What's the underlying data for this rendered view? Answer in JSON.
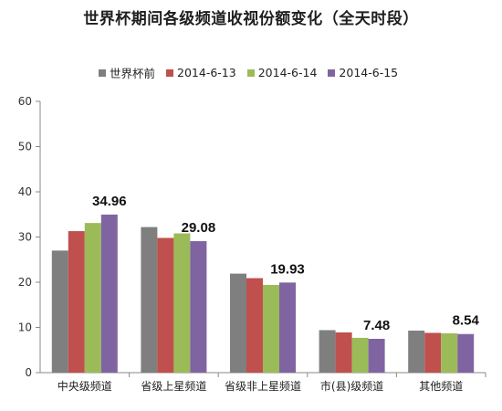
{
  "chart_data": {
    "type": "bar",
    "title": "世界杯期间各级频道收视份额变化（全天时段）",
    "xlabel": "",
    "ylabel": "",
    "ylim": [
      0,
      60
    ],
    "yticks": [
      0,
      10,
      20,
      30,
      40,
      50,
      60
    ],
    "grid": false,
    "legend_position": "top",
    "categories": [
      "中央级频道",
      "省级上星频道",
      "省级非上星频道",
      "市(县)级频道",
      "其他频道"
    ],
    "series": [
      {
        "name": "世界杯前",
        "color": "#7f7f7f",
        "values": [
          27.0,
          32.2,
          21.9,
          9.4,
          9.3
        ]
      },
      {
        "name": "2014-6-13",
        "color": "#c0504d",
        "values": [
          31.3,
          29.8,
          20.9,
          8.9,
          8.8
        ]
      },
      {
        "name": "2014-6-14",
        "color": "#9bbb59",
        "values": [
          33.1,
          30.8,
          19.4,
          7.7,
          8.7
        ]
      },
      {
        "name": "2014-6-15",
        "color": "#8064a2",
        "values": [
          34.96,
          29.08,
          19.93,
          7.48,
          8.54
        ]
      }
    ],
    "data_labels": [
      {
        "category_index": 0,
        "series_index": 3,
        "text": "34.96"
      },
      {
        "category_index": 1,
        "series_index": 3,
        "text": "29.08"
      },
      {
        "category_index": 2,
        "series_index": 3,
        "text": "19.93"
      },
      {
        "category_index": 3,
        "series_index": 3,
        "text": "7.48"
      },
      {
        "category_index": 4,
        "series_index": 3,
        "text": "8.54"
      }
    ]
  }
}
